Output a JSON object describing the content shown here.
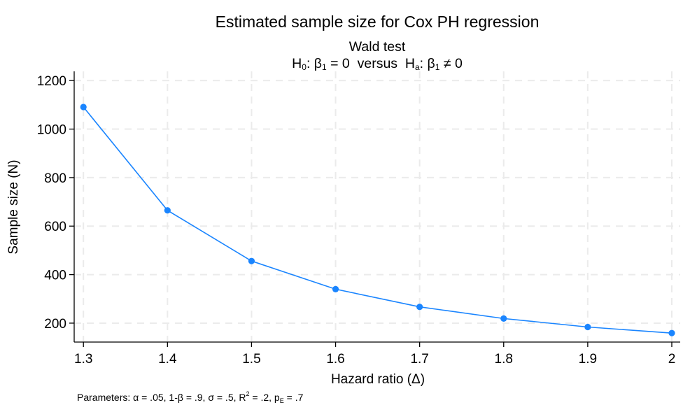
{
  "chart_data": {
    "type": "line",
    "title": "Estimated sample size for Cox PH regression",
    "subtitle_line1": "Wald test",
    "subtitle_line2": {
      "h0_prefix": "H",
      "h0_sub": "0",
      "h0_mid": ": β",
      "h0_beta_sub": "1",
      "h0_rest": " = 0  versus  ",
      "ha_prefix": "H",
      "ha_sub": "a",
      "ha_mid": ": β",
      "ha_beta_sub": "1",
      "ha_rest": " ≠ 0"
    },
    "xlabel": "Hazard ratio (Δ)",
    "ylabel": "Sample size (N)",
    "x": [
      1.3,
      1.4,
      1.5,
      1.6,
      1.7,
      1.8,
      1.9,
      2.0
    ],
    "series": [
      {
        "name": "Sample size (N)",
        "values": [
          1091,
          665,
          456,
          340,
          267,
          219,
          184,
          159
        ],
        "color": "#1a85ff",
        "marker": "circle"
      }
    ],
    "xticks": [
      1.3,
      1.4,
      1.5,
      1.6,
      1.7,
      1.8,
      1.9,
      2.0
    ],
    "xtick_labels": [
      "1.3",
      "1.4",
      "1.5",
      "1.6",
      "1.7",
      "1.8",
      "1.9",
      "2"
    ],
    "yticks": [
      200,
      400,
      600,
      800,
      1000,
      1200
    ],
    "ytick_labels": [
      "200",
      "400",
      "600",
      "800",
      "1000",
      "1200"
    ],
    "xlim": [
      1.289,
      2.01
    ],
    "ylim": [
      122,
      1238
    ],
    "grid": true,
    "legend": "none",
    "note": {
      "text": "Parameters: α = .05, 1-β = .9, σ = .5, R",
      "r_sup": "2",
      "mid": " = .2, p",
      "p_sub": "E",
      "end": " = .7"
    }
  }
}
